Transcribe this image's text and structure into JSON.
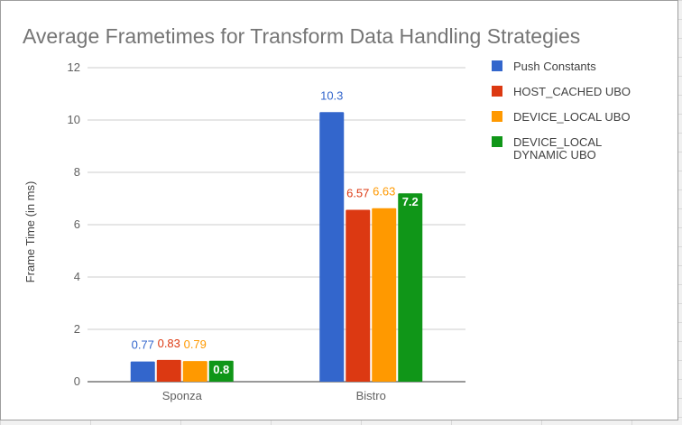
{
  "chart_data": {
    "type": "bar",
    "title": "Average Frametimes for Transform Data Handling Strategies",
    "xlabel": "",
    "ylabel": "Frame Time (in ms)",
    "ylim": [
      0,
      12
    ],
    "yticks": [
      0,
      2,
      4,
      6,
      8,
      10,
      12
    ],
    "grid": true,
    "legend_position": "right",
    "categories": [
      "Sponza",
      "Bistro"
    ],
    "series": [
      {
        "name": "Push Constants",
        "color": "#3366cc",
        "values": [
          0.77,
          10.3
        ],
        "labels": [
          "0.77",
          "10.3"
        ],
        "label_inside": false
      },
      {
        "name": "HOST_CACHED UBO",
        "color": "#dc3912",
        "values": [
          0.83,
          6.57
        ],
        "labels": [
          "0.83",
          "6.57"
        ],
        "label_inside": false
      },
      {
        "name": "DEVICE_LOCAL UBO",
        "color": "#ff9900",
        "values": [
          0.79,
          6.63
        ],
        "labels": [
          "0.79",
          "6.63"
        ],
        "label_inside": false
      },
      {
        "name": "DEVICE_LOCAL DYNAMIC UBO",
        "legend_lines": [
          "DEVICE_LOCAL",
          "DYNAMIC UBO"
        ],
        "color": "#109618",
        "values": [
          0.8,
          7.2
        ],
        "labels": [
          "0.8",
          "7.2"
        ],
        "label_inside": true
      }
    ]
  }
}
